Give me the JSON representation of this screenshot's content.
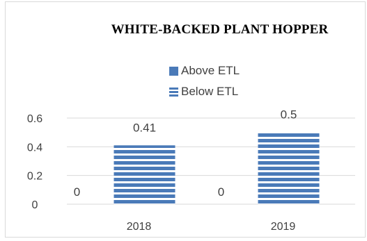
{
  "chart_data": {
    "type": "bar",
    "title": "WHITE-BACKED PLANT HOPPER",
    "xlabel": "",
    "ylabel": "",
    "categories": [
      "2018",
      "2019"
    ],
    "series": [
      {
        "name": "Above ETL",
        "values": [
          0,
          0
        ],
        "color": "#4a7ab8",
        "pattern": "solid"
      },
      {
        "name": "Below ETL",
        "values": [
          0.41,
          0.5
        ],
        "color": "#4a7ab8",
        "pattern": "horizontal-stripes"
      }
    ],
    "data_labels": [
      [
        "0",
        "0"
      ],
      [
        "0.41",
        "0.5"
      ]
    ],
    "yticks": [
      "0",
      "0.2",
      "0.4",
      "0.6"
    ],
    "ylim": [
      0,
      0.6
    ],
    "grid": true,
    "legend_position": "top-center"
  }
}
